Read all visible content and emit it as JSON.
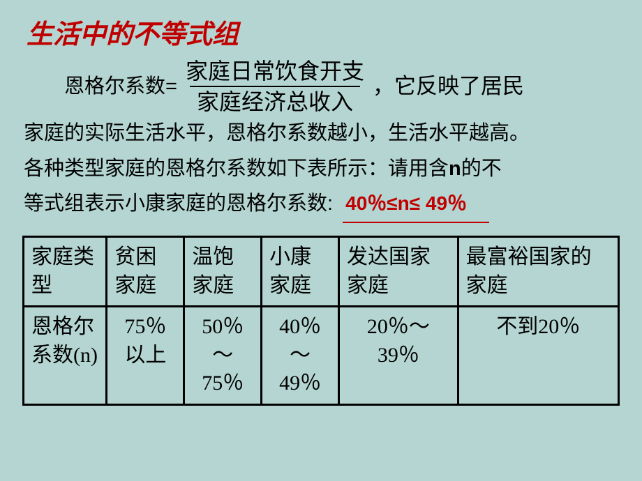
{
  "title": "生活中的不等式组",
  "formula": {
    "label": "恩格尔系数=",
    "numerator": "家庭日常饮食开支",
    "denominator": "家庭经济总收入"
  },
  "body": {
    "after_fraction": "，它反映了居民",
    "line2": "家庭的实际生活水平，恩格尔系数越小，生活水平越高。",
    "line3_a": "各种类型家庭的恩格尔系数如下表所示：请用含",
    "line3_n": "n",
    "line3_b": "的不",
    "line4": "等式组表示小康家庭的恩格尔系数:",
    "answer": "40％≤n≤ 49％"
  },
  "table": {
    "columns": [
      "家庭类型",
      "贫困家庭",
      "温饱家庭",
      "小康家庭",
      "发达国家家庭",
      "最富裕国家的家庭"
    ],
    "row_label": "恩格尔系数(n)",
    "values": [
      "75％以上",
      "50％～75％",
      "40％～49％",
      "20％～39％",
      "不到20％"
    ],
    "col_widths": [
      "14%",
      "13%",
      "13%",
      "13%",
      "20%",
      "27%"
    ],
    "border_color": "#000000",
    "text_color": "#000000",
    "font_size_pt": 22
  },
  "colors": {
    "background": "#b4d5d1",
    "title": "#c00000",
    "answer": "#c00000",
    "text": "#000000"
  }
}
